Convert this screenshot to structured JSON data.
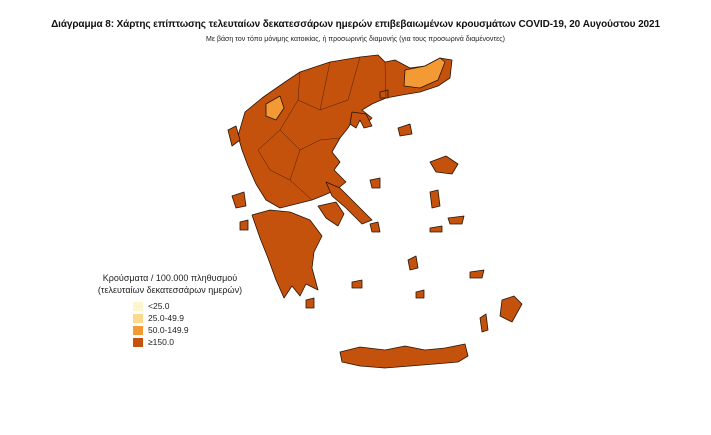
{
  "title": "Διάγραμμα 8: Χάρτης επίπτωσης τελευταίων δεκατεσσάρων ημερών επιβεβαιωμένων κρουσμάτων COVID-19, 20 Αυγούστου 2021",
  "subtitle": "Με βάση τον τόπο μόνιμης κατοικίας, ή προσωρινής διαμονής (για τους προσωρινά διαμένοντες)",
  "legend": {
    "title_line1": "Κρούσματα / 100.000 πληθυσμού",
    "title_line2": "(τελευταίων δεκατεσσάρων ημερών)",
    "items": [
      {
        "label": "<25.0",
        "color": "#fff5cc"
      },
      {
        "label": "25.0-49.9",
        "color": "#fdd98c"
      },
      {
        "label": "50.0-149.9",
        "color": "#f39a35"
      },
      {
        "label": "≥150.0",
        "color": "#c4510c"
      }
    ]
  },
  "map": {
    "region": "Greece",
    "dominant_class": "≥150.0",
    "regions_in_50_149_9": 2
  }
}
